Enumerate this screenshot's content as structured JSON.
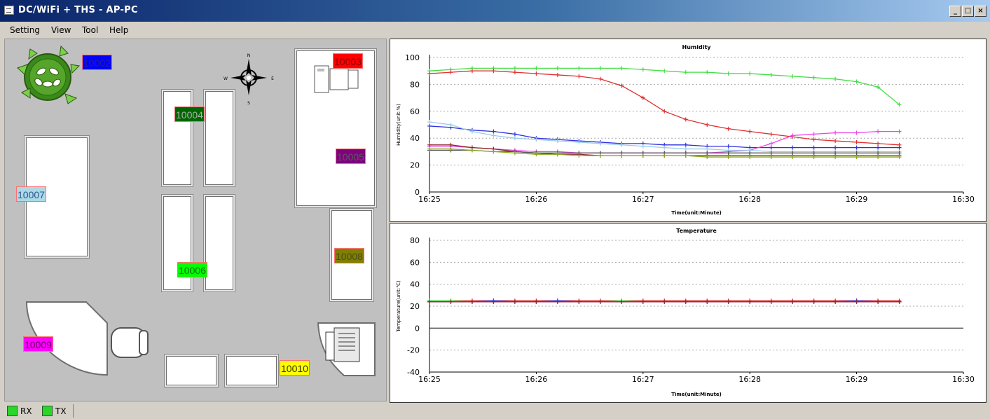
{
  "window": {
    "title": "DC/WiFi + THS - AP-PC",
    "minimize": "_",
    "maximize": "□",
    "close": "×"
  },
  "menu": [
    "Setting",
    "View",
    "Tool",
    "Help"
  ],
  "compass": {
    "n": "N",
    "s": "S",
    "e": "E",
    "w": "W"
  },
  "sensors": [
    {
      "id": "10002",
      "bg": "#0000ff",
      "fg": "#2020a0"
    },
    {
      "id": "10003",
      "bg": "#ff0000",
      "fg": "#8a0000"
    },
    {
      "id": "10004",
      "bg": "#006600",
      "fg": "#b0b0b0"
    },
    {
      "id": "10005",
      "bg": "#800080",
      "fg": "#5a5a5a"
    },
    {
      "id": "10006",
      "bg": "#00ff00",
      "fg": "#007000"
    },
    {
      "id": "10007",
      "bg": "#add8e6",
      "fg": "#2a5a90"
    },
    {
      "id": "10008",
      "bg": "#808000",
      "fg": "#4a4a20"
    },
    {
      "id": "10009",
      "bg": "#ff00ff",
      "fg": "#6a006a"
    },
    {
      "id": "10010",
      "bg": "#ffff00",
      "fg": "#333300"
    }
  ],
  "status": {
    "rx": "RX",
    "tx": "TX",
    "led_color": "#2bd62b"
  },
  "chart_data": [
    {
      "type": "line",
      "title": "Humidity",
      "xlabel": "Time(unit:Minute)",
      "ylabel": "Humidity(unit:%)",
      "x_ticks": [
        "16:25",
        "16:26",
        "16:27",
        "16:28",
        "16:29",
        "16:30"
      ],
      "xlim": [
        0,
        5
      ],
      "ylim": [
        0,
        100
      ],
      "y_ticks": [
        0,
        20,
        40,
        60,
        80,
        100
      ],
      "grid": true,
      "x": [
        0,
        0.2,
        0.4,
        0.6,
        0.8,
        1.0,
        1.2,
        1.4,
        1.6,
        1.8,
        2.0,
        2.2,
        2.4,
        2.6,
        2.8,
        3.0,
        3.2,
        3.4,
        3.6,
        3.8,
        4.0,
        4.2,
        4.4
      ],
      "series": [
        {
          "color": "#44dd44",
          "values": [
            90,
            91,
            92,
            92,
            92,
            92,
            92,
            92,
            92,
            92,
            91,
            90,
            89,
            89,
            88,
            88,
            87,
            86,
            85,
            84,
            82,
            78,
            65
          ]
        },
        {
          "color": "#e03030",
          "values": [
            88,
            89,
            90,
            90,
            89,
            88,
            87,
            86,
            84,
            79,
            70,
            60,
            54,
            50,
            47,
            45,
            43,
            41,
            39,
            38,
            37,
            36,
            35
          ]
        },
        {
          "color": "#3030e0",
          "values": [
            49,
            48,
            46,
            45,
            43,
            40,
            39,
            38,
            37,
            36,
            36,
            35,
            35,
            34,
            34,
            33,
            33,
            33,
            33,
            33,
            33,
            33,
            33
          ]
        },
        {
          "color": "#ee44ee",
          "values": [
            34,
            34,
            33,
            32,
            31,
            30,
            30,
            29,
            29,
            29,
            29,
            29,
            29,
            29,
            30,
            31,
            36,
            42,
            43,
            44,
            44,
            45,
            45
          ]
        },
        {
          "color": "#99ccee",
          "values": [
            52,
            50,
            45,
            42,
            40,
            39,
            38,
            37,
            36,
            35,
            34,
            33,
            32,
            32,
            31,
            31,
            30,
            30,
            30,
            30,
            30,
            30,
            30
          ]
        },
        {
          "color": "#8b2a2a",
          "values": [
            35,
            35,
            33,
            32,
            30,
            29,
            28,
            28,
            27,
            27,
            27,
            27,
            27,
            27,
            27,
            27,
            27,
            27,
            27,
            27,
            27,
            27,
            27
          ]
        },
        {
          "color": "#555555",
          "values": [
            31,
            31,
            31,
            30,
            30,
            29,
            29,
            29,
            29,
            29,
            29,
            29,
            29,
            29,
            29,
            29,
            29,
            29,
            29,
            29,
            29,
            29,
            29
          ]
        },
        {
          "color": "#88aa22",
          "values": [
            32,
            32,
            31,
            30,
            29,
            28,
            28,
            27,
            27,
            27,
            27,
            27,
            27,
            26,
            26,
            26,
            26,
            26,
            26,
            26,
            26,
            26,
            26
          ]
        }
      ]
    },
    {
      "type": "line",
      "title": "Temperature",
      "xlabel": "Time(unit:Minute)",
      "ylabel": "Temperature(unit:℃)",
      "x_ticks": [
        "16:25",
        "16:26",
        "16:27",
        "16:28",
        "16:29",
        "16:30"
      ],
      "xlim": [
        0,
        5
      ],
      "ylim": [
        -40,
        80
      ],
      "y_ticks": [
        -40,
        -20,
        0,
        20,
        40,
        60,
        80
      ],
      "grid": true,
      "x": [
        0,
        0.2,
        0.4,
        0.6,
        0.8,
        1.0,
        1.2,
        1.4,
        1.6,
        1.8,
        2.0,
        2.2,
        2.4,
        2.6,
        2.8,
        3.0,
        3.2,
        3.4,
        3.6,
        3.8,
        4.0,
        4.2,
        4.4
      ],
      "series": [
        {
          "color": "#e03030",
          "values": [
            25,
            25,
            25,
            25,
            25,
            25,
            25,
            25,
            25,
            25,
            25,
            25,
            25,
            25,
            25,
            25,
            25,
            25,
            25,
            25,
            25,
            25,
            25
          ]
        },
        {
          "color": "#3030e0",
          "values": [
            24,
            24,
            24,
            25,
            24,
            24,
            25,
            24,
            24,
            24,
            24,
            24,
            24,
            24,
            24,
            24,
            24,
            24,
            24,
            24,
            25,
            24,
            24
          ]
        },
        {
          "color": "#44dd44",
          "values": [
            25,
            25,
            24,
            24,
            24,
            24,
            24,
            24,
            24,
            25,
            24,
            24,
            24,
            24,
            24,
            24,
            24,
            24,
            24,
            24,
            24,
            24,
            24
          ]
        },
        {
          "color": "#ee44ee",
          "values": [
            24,
            24,
            24,
            24,
            24,
            24,
            24,
            24,
            24,
            24,
            24,
            24,
            24,
            24,
            24,
            24,
            24,
            24,
            24,
            24,
            24,
            24,
            24
          ]
        },
        {
          "color": "#8b2a2a",
          "values": [
            24,
            24,
            24,
            24,
            24,
            24,
            24,
            24,
            24,
            24,
            24,
            24,
            24,
            24,
            24,
            24,
            24,
            24,
            24,
            24,
            24,
            24,
            24
          ]
        }
      ]
    }
  ]
}
